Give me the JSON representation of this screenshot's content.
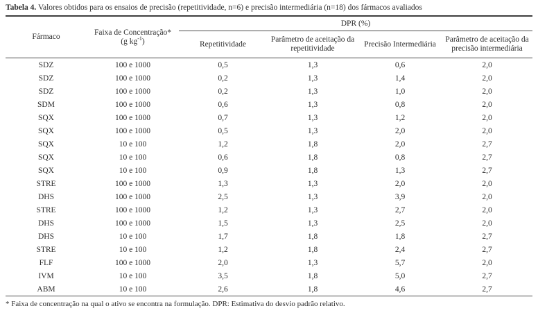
{
  "title": {
    "prefix": "Tabela 4.",
    "text": " Valores obtidos para os ensaios de precisão (repetitividade, n=6) e precisão intermediária (n=18) dos fármacos avaliados"
  },
  "table": {
    "span_header": "DPR (%)",
    "headers": {
      "farmaco": "Fármaco",
      "faixa_line1": "Faixa de Concentração*",
      "faixa_unit_base": "(g kg",
      "faixa_unit_sup": "-1",
      "faixa_unit_close": ")",
      "repetitividade": "Repetitividade",
      "param_repetitividade": "Parâmetro de aceitação da repetitividade",
      "precisao_intermediaria": "Precisão Intermediária",
      "param_precisao_intermediaria": "Parâmetro de aceitação da precisão intermediária"
    },
    "rows": [
      [
        "SDZ",
        "100 e 1000",
        "0,5",
        "1,3",
        "0,6",
        "2,0"
      ],
      [
        "SDZ",
        "100 e 1000",
        "0,2",
        "1,3",
        "1,4",
        "2,0"
      ],
      [
        "SDZ",
        "100 e 1000",
        "0,2",
        "1,3",
        "1,0",
        "2,0"
      ],
      [
        "SDM",
        "100 e 1000",
        "0,6",
        "1,3",
        "0,8",
        "2,0"
      ],
      [
        "SQX",
        "100 e 1000",
        "0,7",
        "1,3",
        "1,2",
        "2,0"
      ],
      [
        "SQX",
        "100 e 1000",
        "0,5",
        "1,3",
        "2,0",
        "2,0"
      ],
      [
        "SQX",
        "10 e 100",
        "1,2",
        "1,8",
        "2,0",
        "2,7"
      ],
      [
        "SQX",
        "10 e 100",
        "0,6",
        "1,8",
        "0,8",
        "2,7"
      ],
      [
        "SQX",
        "10 e 100",
        "0,9",
        "1,8",
        "1,3",
        "2,7"
      ],
      [
        "STRE",
        "100 e 1000",
        "1,3",
        "1,3",
        "2,0",
        "2,0"
      ],
      [
        "DHS",
        "100 e 1000",
        "2,5",
        "1,3",
        "3,9",
        "2,0"
      ],
      [
        "STRE",
        "100 e 1000",
        "1,2",
        "1,3",
        "2,7",
        "2,0"
      ],
      [
        "DHS",
        "100 e 1000",
        "1,5",
        "1,3",
        "2,5",
        "2,0"
      ],
      [
        "DHS",
        "10 e 100",
        "1,7",
        "1,8",
        "1,8",
        "2,7"
      ],
      [
        "STRE",
        "10 e 100",
        "1,2",
        "1,8",
        "2,4",
        "2,7"
      ],
      [
        "FLF",
        "100 e 1000",
        "2,0",
        "1,3",
        "5,7",
        "2,0"
      ],
      [
        "IVM",
        "10 e 100",
        "3,5",
        "1,8",
        "5,0",
        "2,7"
      ],
      [
        "ABM",
        "10 e 100",
        "2,6",
        "1,8",
        "4,6",
        "2,7"
      ]
    ]
  },
  "footnote": "* Faixa de concentração na qual o ativo se encontra na formulação. DPR: Estimativa do desvio padrão relativo."
}
